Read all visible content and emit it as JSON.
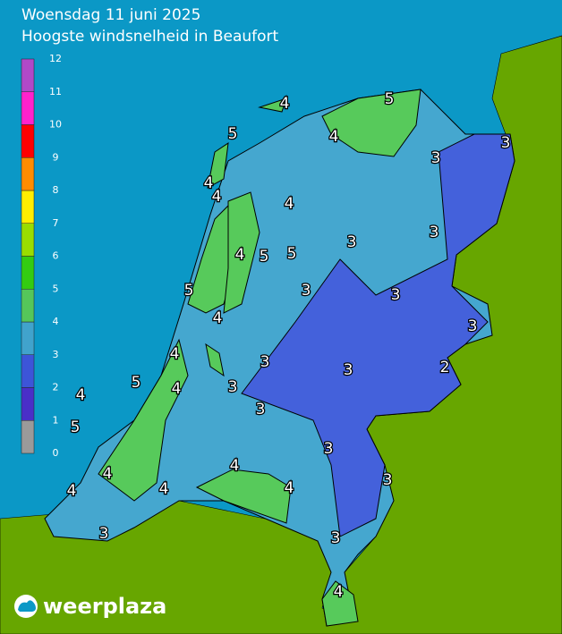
{
  "header": {
    "title": "Woensdag 11 juni 2025",
    "subtitle": "Hoogste windsnelheid in Beaufort"
  },
  "legend": {
    "ticks": [
      0,
      1,
      2,
      3,
      4,
      5,
      6,
      7,
      8,
      9,
      10,
      11,
      12
    ],
    "colors": [
      "#9a9a9a",
      "#4a2fc8",
      "#3d55d8",
      "#41a3cc",
      "#55c65a",
      "#33cc11",
      "#99dd00",
      "#ffee00",
      "#ff8c00",
      "#ff0000",
      "#ff22cc",
      "#b049c8"
    ]
  },
  "map_labels": [
    4,
    5,
    5,
    4,
    3,
    3,
    4,
    4,
    4,
    3,
    3,
    4,
    5,
    5,
    5,
    3,
    3,
    4,
    3,
    4,
    3,
    3,
    2,
    5,
    4,
    4,
    3,
    3,
    5,
    3,
    4,
    4,
    3,
    4,
    4,
    4,
    3,
    3,
    4
  ],
  "logo": "weerplaza"
}
